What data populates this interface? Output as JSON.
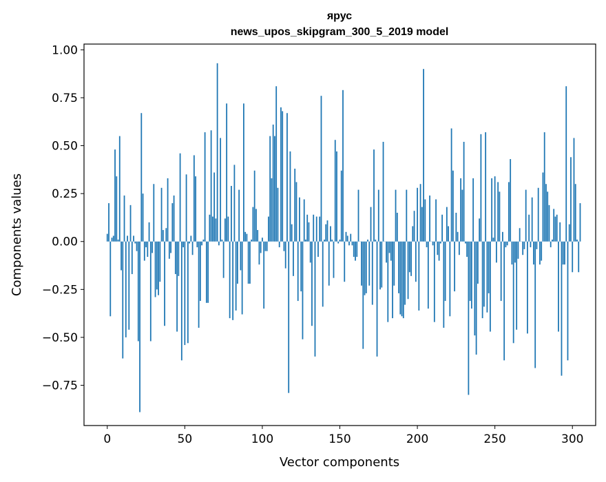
{
  "chart_data": {
    "type": "bar",
    "title_line1": "ярус",
    "title_line2": "news_upos_skipgram_300_5_2019 model",
    "xlabel": "Vector components",
    "ylabel": "Components values",
    "xlim": [
      -15,
      315
    ],
    "ylim": [
      -0.96,
      1.03
    ],
    "xticks": [
      0,
      50,
      100,
      150,
      200,
      250,
      300
    ],
    "xtick_labels": [
      "0",
      "50",
      "100",
      "150",
      "200",
      "250",
      "300"
    ],
    "yticks": [
      -0.75,
      -0.5,
      -0.25,
      0.0,
      0.25,
      0.5,
      0.75,
      1.0
    ],
    "ytick_labels": [
      "−0.75",
      "−0.50",
      "−0.25",
      "0.00",
      "0.25",
      "0.50",
      "0.75",
      "1.00"
    ],
    "bar_color": "#1f77b4",
    "grid": false,
    "values": [
      0.04,
      0.2,
      -0.39,
      0.02,
      0.03,
      0.48,
      0.34,
      0.01,
      0.55,
      -0.15,
      -0.61,
      0.24,
      -0.5,
      0.03,
      -0.46,
      0.19,
      -0.17,
      0.03,
      -0.01,
      -0.05,
      -0.52,
      -0.89,
      0.67,
      0.25,
      -0.1,
      -0.03,
      -0.08,
      0.1,
      -0.52,
      -0.06,
      0.3,
      -0.29,
      -0.25,
      -0.28,
      -0.21,
      0.28,
      0.06,
      -0.44,
      0.07,
      0.33,
      -0.09,
      -0.06,
      0.2,
      0.24,
      -0.17,
      -0.47,
      -0.18,
      0.46,
      -0.62,
      -0.03,
      -0.54,
      0.35,
      -0.53,
      -0.01,
      0.03,
      -0.07,
      0.45,
      0.34,
      -0.03,
      -0.45,
      -0.31,
      -0.02,
      0.01,
      0.57,
      -0.32,
      -0.32,
      0.14,
      0.58,
      0.13,
      0.36,
      0.12,
      0.93,
      -0.02,
      0.54,
      0.01,
      -0.19,
      0.12,
      0.72,
      0.13,
      -0.4,
      0.29,
      -0.41,
      0.4,
      -0.36,
      -0.22,
      0.27,
      -0.15,
      -0.38,
      0.72,
      0.05,
      0.04,
      -0.22,
      -0.22,
      0.01,
      0.18,
      0.37,
      0.17,
      0.06,
      -0.12,
      -0.06,
      0.02,
      -0.35,
      -0.05,
      -0.05,
      0.13,
      0.55,
      0.33,
      0.61,
      0.55,
      0.81,
      0.28,
      -0.03,
      0.7,
      0.68,
      -0.05,
      -0.14,
      0.67,
      -0.79,
      0.47,
      0.09,
      -0.18,
      0.38,
      0.31,
      -0.31,
      0.23,
      -0.26,
      -0.51,
      0.22,
      0.01,
      0.14,
      0.1,
      -0.11,
      -0.44,
      0.14,
      -0.6,
      0.13,
      -0.08,
      0.13,
      0.76,
      -0.34,
      0.01,
      0.09,
      0.11,
      -0.23,
      0.08,
      0.01,
      -0.19,
      0.53,
      0.47,
      -0.01,
      0.01,
      0.37,
      0.79,
      -0.21,
      0.05,
      0.03,
      -0.02,
      0.04,
      -0.02,
      -0.08,
      -0.1,
      -0.08,
      0.27,
      0.0,
      -0.23,
      -0.56,
      -0.28,
      -0.27,
      0.01,
      -0.23,
      0.18,
      -0.33,
      0.48,
      0.01,
      -0.6,
      0.27,
      -0.25,
      -0.24,
      0.52,
      0.0,
      -0.11,
      -0.42,
      -0.06,
      -0.1,
      -0.4,
      -0.23,
      0.27,
      0.15,
      -0.27,
      -0.38,
      -0.39,
      -0.4,
      -0.33,
      0.27,
      -0.3,
      -0.16,
      -0.18,
      0.08,
      0.16,
      -0.21,
      0.28,
      -0.36,
      0.3,
      0.18,
      0.9,
      0.22,
      -0.03,
      -0.35,
      0.24,
      0.0,
      -0.02,
      -0.42,
      0.22,
      -0.07,
      -0.1,
      -0.01,
      0.14,
      -0.45,
      -0.31,
      0.18,
      0.08,
      -0.39,
      0.59,
      0.37,
      -0.26,
      0.15,
      0.05,
      -0.07,
      0.33,
      0.27,
      0.52,
      -0.01,
      -0.08,
      -0.8,
      -0.31,
      -0.35,
      0.33,
      -0.49,
      -0.59,
      -0.22,
      0.12,
      0.56,
      -0.4,
      -0.34,
      0.57,
      -0.37,
      -0.27,
      -0.47,
      0.33,
      0.02,
      0.34,
      -0.11,
      0.31,
      0.26,
      -0.31,
      0.05,
      -0.62,
      -0.03,
      -0.02,
      0.31,
      0.43,
      -0.12,
      -0.53,
      -0.11,
      -0.46,
      -0.09,
      0.07,
      0.0,
      -0.07,
      -0.04,
      0.27,
      -0.48,
      0.14,
      -0.03,
      0.23,
      -0.12,
      -0.66,
      -0.04,
      0.28,
      -0.12,
      -0.1,
      0.36,
      0.57,
      0.3,
      0.26,
      0.19,
      -0.03,
      0.01,
      0.17,
      0.13,
      0.14,
      -0.47,
      0.1,
      -0.7,
      -0.12,
      -0.12,
      0.81,
      -0.62,
      0.09,
      0.44,
      -0.16,
      0.54,
      0.3,
      0.01,
      -0.16,
      0.2
    ]
  }
}
